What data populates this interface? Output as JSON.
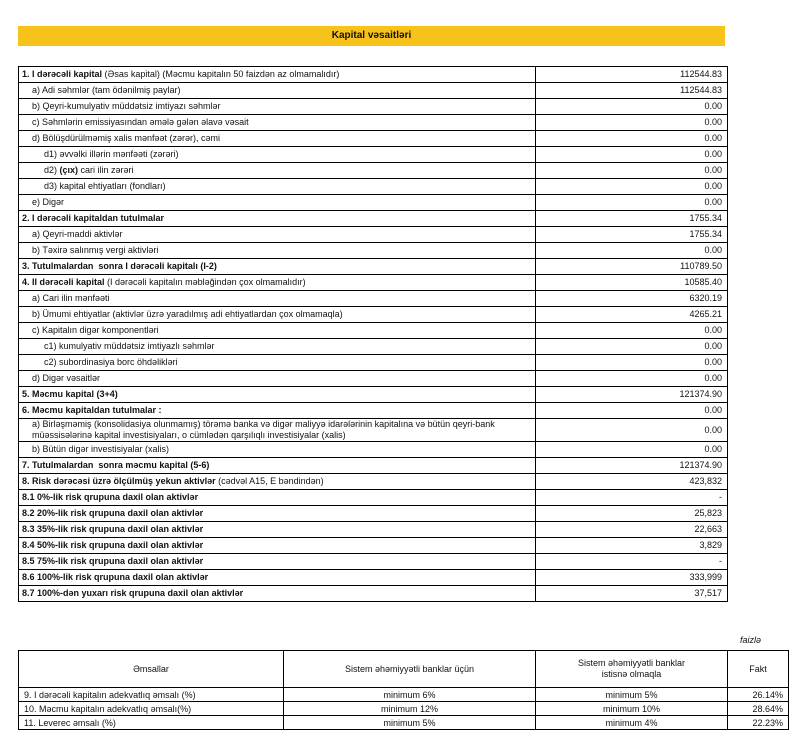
{
  "header": {
    "title": "Kapital vəsaitləri"
  },
  "capital_table": {
    "rows": [
      {
        "label": [
          {
            "text": "1. I dərəcəli kapital",
            "bold": true
          },
          {
            "text": " (Əsas kapital) (Məcmu kapitalın 50 faizdən az olmamalıdır)",
            "bold": false
          }
        ],
        "value": "112544.83"
      },
      {
        "label": [
          {
            "text": "a) Adi səhmlər (tam ödənilmiş paylar)",
            "bold": false
          }
        ],
        "value": "112544.83"
      },
      {
        "label": [
          {
            "text": "b) Qeyri-kumulyativ müddətsiz imtiyazı səhmlər",
            "bold": false
          }
        ],
        "value": "0.00"
      },
      {
        "label": [
          {
            "text": "c) Səhmlərin emissiyasından əmələ gələn əlavə vəsait",
            "bold": false
          }
        ],
        "value": "0.00"
      },
      {
        "label": [
          {
            "text": "d) Bölüşdürülməmiş xalis mənfəət (zərər), cəmi",
            "bold": false
          }
        ],
        "value": "0.00"
      },
      {
        "label": [
          {
            "text": "d1) əvvəlki illərin mənfəəti (zərəri)",
            "bold": false
          }
        ],
        "value": "0.00"
      },
      {
        "label": [
          {
            "text": "d2) ",
            "bold": false
          },
          {
            "text": "(çıx)",
            "bold": true
          },
          {
            "text": " cari ilin zərəri",
            "bold": false
          }
        ],
        "value": "0.00"
      },
      {
        "label": [
          {
            "text": "d3) kapital ehtiyatları (fondları)",
            "bold": false
          }
        ],
        "value": "0.00"
      },
      {
        "label": [
          {
            "text": "e) Digər",
            "bold": false
          }
        ],
        "value": "0.00"
      },
      {
        "label": [
          {
            "text": "2. I dərəcəli kapitaldan tutulmalar",
            "bold": true
          }
        ],
        "value": "1755.34"
      },
      {
        "label": [
          {
            "text": "a) Qeyri-maddi aktivlər",
            "bold": false
          }
        ],
        "value": "1755.34"
      },
      {
        "label": [
          {
            "text": "b) Təxirə salınmış vergi aktivləri",
            "bold": false
          }
        ],
        "value": "0.00"
      },
      {
        "label": [
          {
            "text": "3. Tutulmalardan  sonra I dərəcəli kapitalı (I-2)",
            "bold": true
          }
        ],
        "value": "110789.50"
      },
      {
        "label": [
          {
            "text": "4. II dərəcəli kapital",
            "bold": true
          },
          {
            "text": " (I dərəcəli kapitalın məbləğindən çox olmamalıdır)",
            "bold": false
          }
        ],
        "value": "10585.40"
      },
      {
        "label": [
          {
            "text": "a) Cari ilin mənfəəti",
            "bold": false
          }
        ],
        "value": "6320.19"
      },
      {
        "label": [
          {
            "text": "b) Ümumi ehtiyatlar (aktivlər üzrə yaradılmış adi ehtiyatlardan çox olmamaqla)",
            "bold": false
          }
        ],
        "value": "4265.21"
      },
      {
        "label": [
          {
            "text": "c) Kapitalın digər komponentləri",
            "bold": false
          }
        ],
        "value": "0.00"
      },
      {
        "label": [
          {
            "text": "c1) kumulyativ müddətsiz imtiyazlı səhmlər",
            "bold": false
          }
        ],
        "value": "0.00"
      },
      {
        "label": [
          {
            "text": "c2) subordinasiya borc öhdəlikləri",
            "bold": false
          }
        ],
        "value": "0.00"
      },
      {
        "label": [
          {
            "text": "d) Digər vəsaitlər",
            "bold": false
          }
        ],
        "value": "0.00"
      },
      {
        "label": [
          {
            "text": "5. Məcmu kapital (3+4)",
            "bold": true
          }
        ],
        "value": "121374.90"
      },
      {
        "label": [
          {
            "text": "6. Məcmu kapitaldan tutulmalar :",
            "bold": true
          }
        ],
        "value": "0.00"
      },
      {
        "label": [
          {
            "text": "a) Birləşməmiş (konsolidasiya olunmamış) törəmə banka və digər maliyyə idarələrinin kapitalına və bütün qeyri-bank müəssisələrinə kapital investisiyaları, o cümlədən qarşılıqlı investisiyalar (xalis)",
            "bold": false
          }
        ],
        "value": "0.00"
      },
      {
        "label": [
          {
            "text": "b) Bütün digər investisiyalar (xalis)",
            "bold": false
          }
        ],
        "value": "0.00"
      },
      {
        "label": [
          {
            "text": "7. Tutulmalardan  sonra məcmu kapital (5-6)",
            "bold": true
          }
        ],
        "value": "121374.90"
      },
      {
        "label": [
          {
            "text": "8. Risk dərəcəsi üzrə ölçülmüş yekun aktivlər",
            "bold": true
          },
          {
            "text": " (cədvəl A15, E bəndindən)",
            "bold": false
          }
        ],
        "value": "423,832"
      },
      {
        "label": [
          {
            "text": "8.1 0%-lik risk qrupuna daxil olan aktivlər",
            "bold": true
          }
        ],
        "value": "-"
      },
      {
        "label": [
          {
            "text": "8.2 20%-lik risk qrupuna daxil olan aktivlər",
            "bold": true
          }
        ],
        "value": "25,823"
      },
      {
        "label": [
          {
            "text": "8.3 35%-lik risk qrupuna daxil olan aktivlər",
            "bold": true
          }
        ],
        "value": "22,663"
      },
      {
        "label": [
          {
            "text": "8.4 50%-lik risk qrupuna daxil olan aktivlər",
            "bold": true
          }
        ],
        "value": "3,829"
      },
      {
        "label": [
          {
            "text": "8.5 75%-lik risk qrupuna daxil olan aktivlər",
            "bold": true
          }
        ],
        "value": "-"
      },
      {
        "label": [
          {
            "text": "8.6 100%-lik risk qrupuna daxil olan aktivlər",
            "bold": true
          }
        ],
        "value": "333,999"
      },
      {
        "label": [
          {
            "text": "8.7 100%-dən yuxarı risk qrupuna daxil olan aktivlər",
            "bold": true
          }
        ],
        "value": "37,517"
      }
    ]
  },
  "ratios_table": {
    "unit_note": "faizlə",
    "columns": [
      "Əmsallar",
      "Sistem əhəmiyyətli banklar üçün",
      "Sistem əhəmiyyətli banklar istisnə olmaqla",
      "Fakt"
    ],
    "rows": [
      [
        "9. I dərəcəli kapitalın adekvatlıq əmsalı (%)",
        "minimum 6%",
        "minimum 5%",
        "26.14%"
      ],
      [
        "10. Məcmu kapitalın adekvatlıq əmsalı(%)",
        "minimum 12%",
        "minimum 10%",
        "28.64%"
      ],
      [
        "11. Leverec əmsalı (%)",
        "minimum 5%",
        "minimum 4%",
        "22.23%"
      ]
    ]
  }
}
